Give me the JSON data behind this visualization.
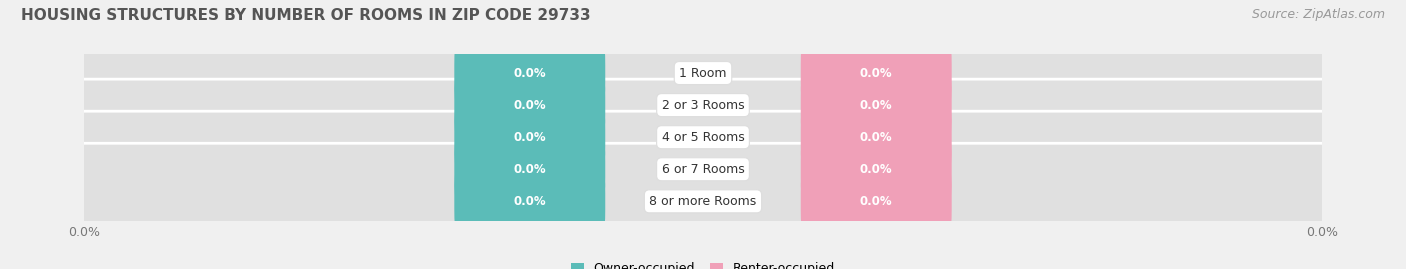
{
  "title": "HOUSING STRUCTURES BY NUMBER OF ROOMS IN ZIP CODE 29733",
  "source": "Source: ZipAtlas.com",
  "categories": [
    "1 Room",
    "2 or 3 Rooms",
    "4 or 5 Rooms",
    "6 or 7 Rooms",
    "8 or more Rooms"
  ],
  "owner_values": [
    0.0,
    0.0,
    0.0,
    0.0,
    0.0
  ],
  "renter_values": [
    0.0,
    0.0,
    0.0,
    0.0,
    0.0
  ],
  "owner_color": "#5bbcb8",
  "renter_color": "#f0a0b8",
  "bar_bg_color": "#e0e0e0",
  "bar_sep_color": "#ffffff",
  "label_fontsize": 8.5,
  "title_fontsize": 11,
  "source_fontsize": 9,
  "category_fontsize": 9,
  "legend_owner": "Owner-occupied",
  "legend_renter": "Renter-occupied",
  "x_tick_label_left": "0.0%",
  "x_tick_label_right": "0.0%",
  "background_color": "#f0f0f0",
  "title_color": "#555555",
  "source_color": "#999999"
}
